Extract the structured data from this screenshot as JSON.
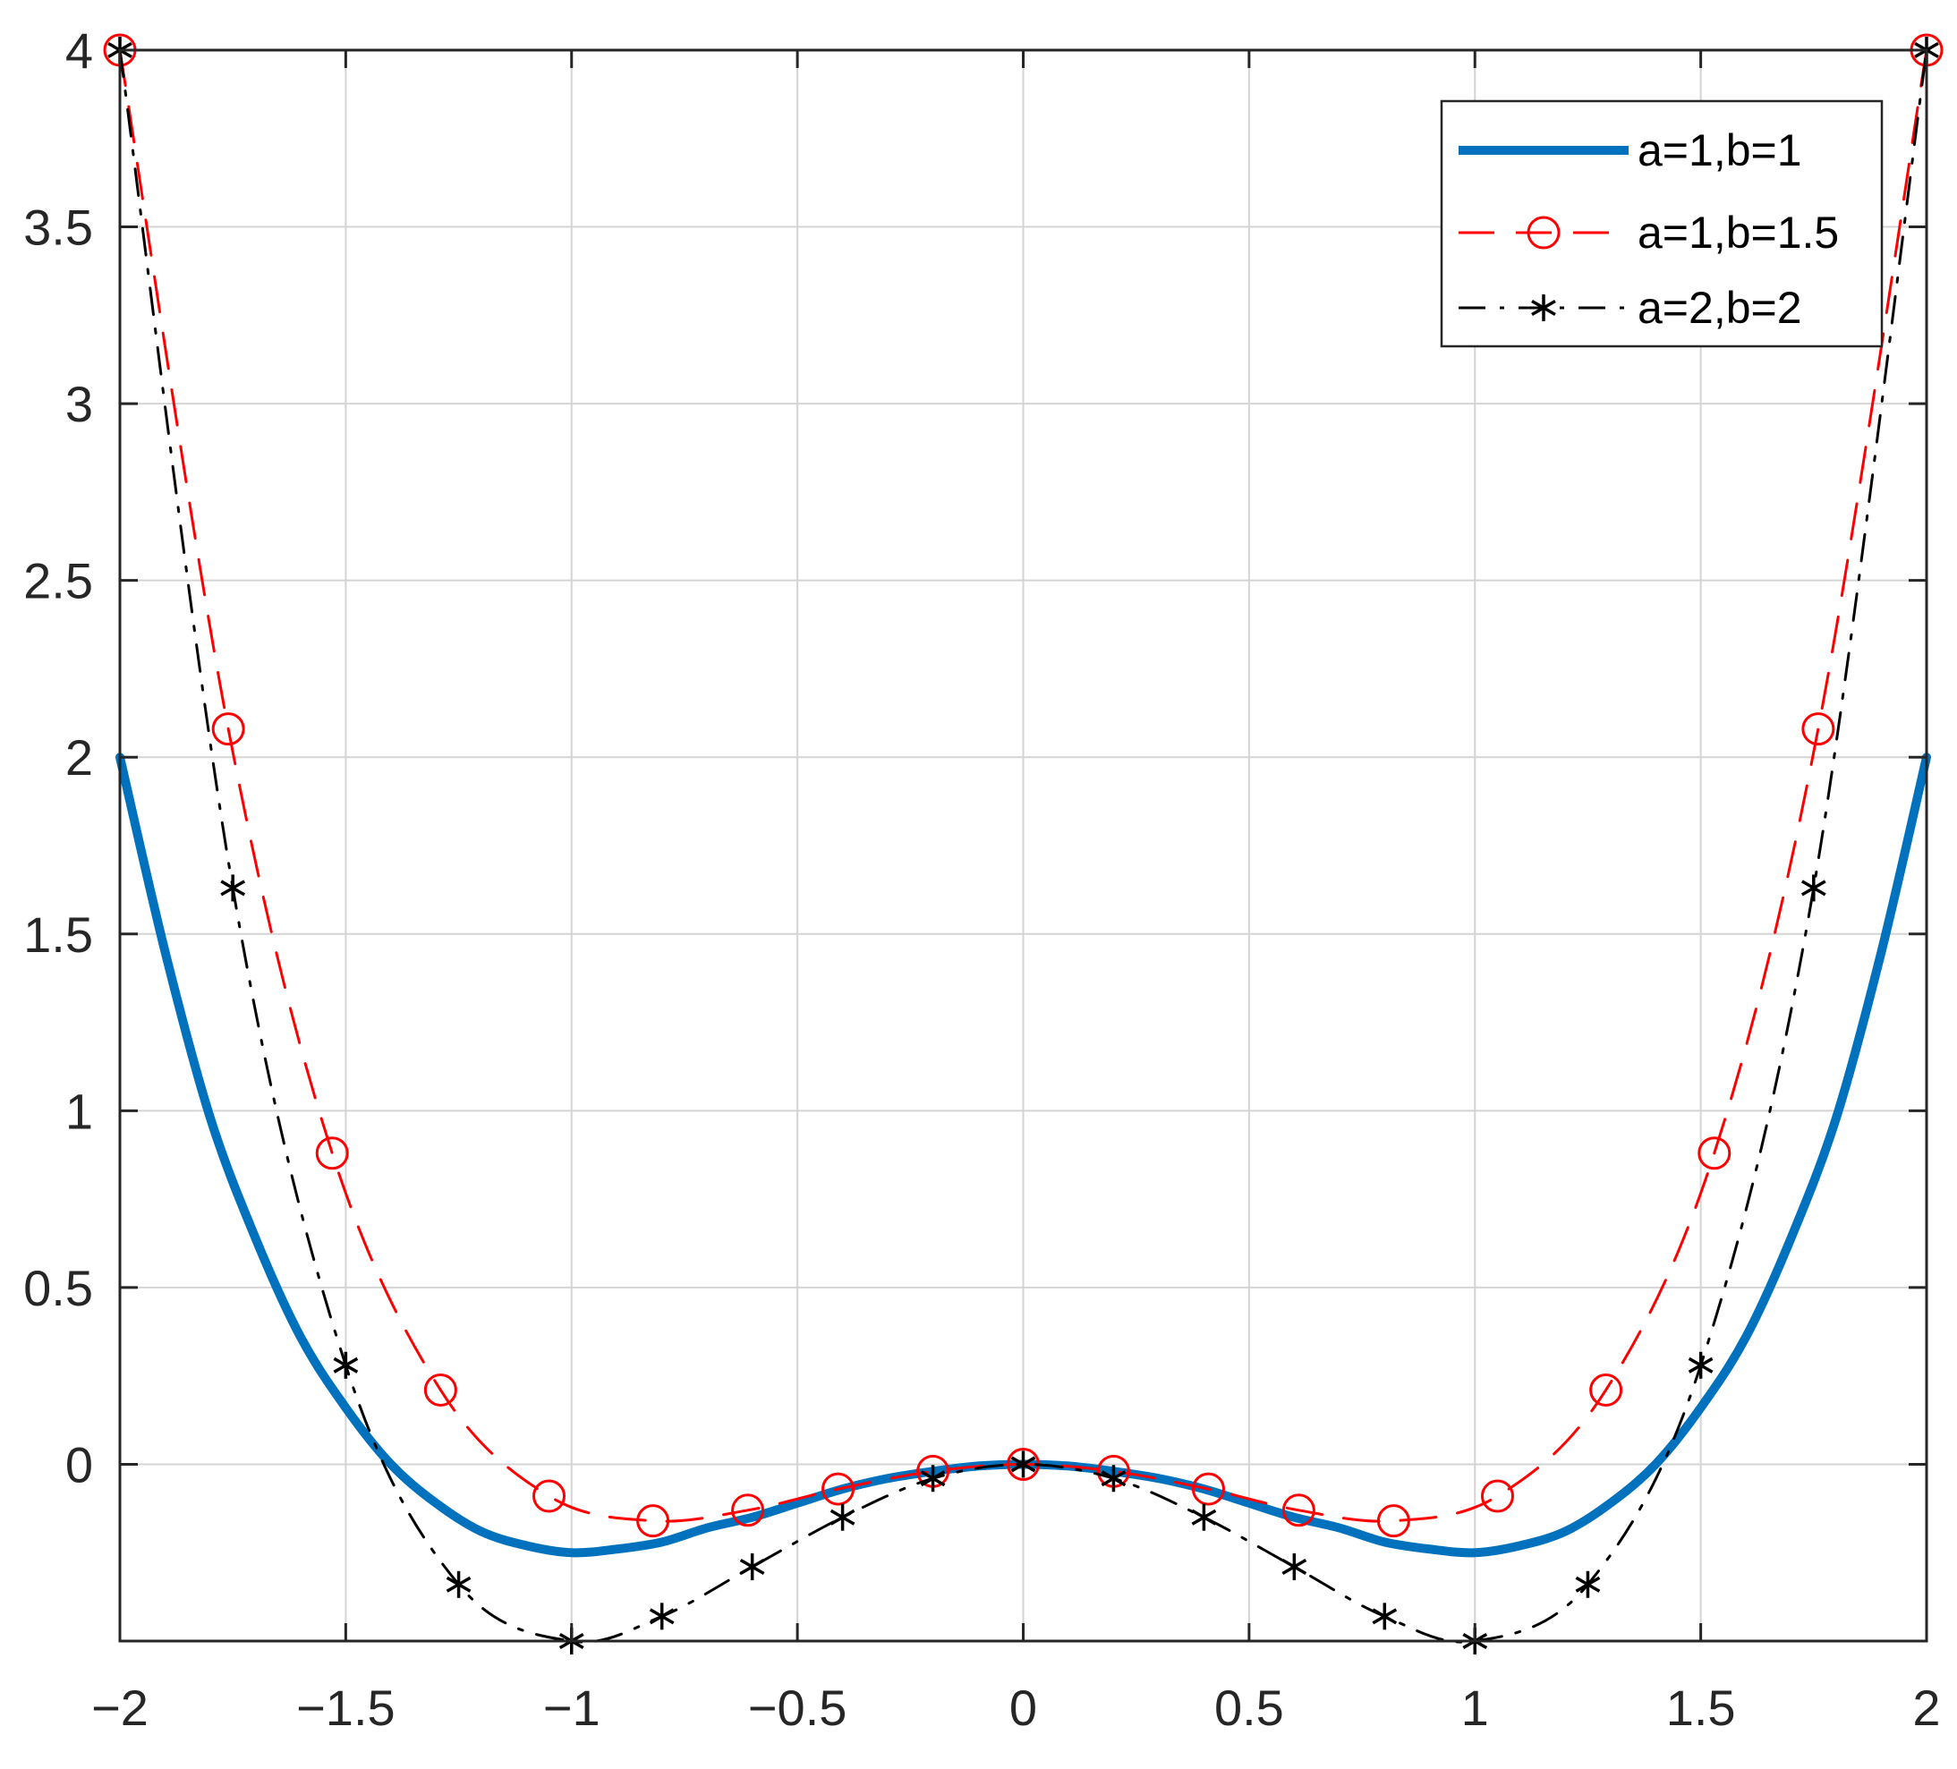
{
  "chart_data": {
    "type": "line",
    "title": "",
    "xlabel": "",
    "ylabel": "",
    "xlim": [
      -2,
      2
    ],
    "ylim": [
      -0.5,
      4
    ],
    "grid": true,
    "legend_position": "top-right",
    "x_ticks": [
      -2,
      -1.5,
      -1,
      -0.5,
      0,
      0.5,
      1,
      1.5,
      2
    ],
    "x_tick_labels": [
      "−2",
      "−1.5",
      "−1",
      "−0.5",
      "0",
      "0.5",
      "1",
      "1.5",
      "2"
    ],
    "y_ticks": [
      0,
      0.5,
      1,
      1.5,
      2,
      2.5,
      3,
      3.5,
      4
    ],
    "y_tick_labels": [
      "0",
      "0.5",
      "1",
      "1.5",
      "2",
      "2.5",
      "3",
      "3.5",
      "4"
    ],
    "series": [
      {
        "name": "a=1,b=1",
        "color": "#0072BD",
        "line_style": "solid",
        "marker": "none",
        "x": [
          -2,
          -1.9,
          -1.8,
          -1.7,
          -1.6,
          -1.5,
          -1.4,
          -1.3,
          -1.2,
          -1.1,
          -1,
          -0.9,
          -0.8,
          -0.7,
          -0.6,
          -0.5,
          -0.4,
          -0.3,
          -0.2,
          -0.1,
          0,
          0.1,
          0.2,
          0.3,
          0.4,
          0.5,
          0.6,
          0.7,
          0.8,
          0.9,
          1,
          1.1,
          1.2,
          1.3,
          1.4,
          1.5,
          1.6,
          1.7,
          1.8,
          1.9,
          2
        ],
        "y": [
          2,
          1.45,
          0.98,
          0.64,
          0.36,
          0.16,
          0.0,
          -0.11,
          -0.19,
          -0.23,
          -0.25,
          -0.24,
          -0.22,
          -0.18,
          -0.15,
          -0.11,
          -0.07,
          -0.04,
          -0.02,
          -0.005,
          0,
          -0.005,
          -0.02,
          -0.04,
          -0.07,
          -0.11,
          -0.15,
          -0.18,
          -0.22,
          -0.24,
          -0.25,
          -0.23,
          -0.19,
          -0.11,
          0.0,
          0.16,
          0.36,
          0.64,
          0.98,
          1.45,
          2
        ]
      },
      {
        "name": "a=1,b=1.5",
        "color": "#FF0000",
        "line_style": "dashed",
        "marker": "circle",
        "x": [
          -2,
          -1.76,
          -1.53,
          -1.29,
          -1.05,
          -0.82,
          -0.61,
          -0.41,
          -0.2,
          0,
          0.2,
          0.41,
          0.61,
          0.82,
          1.05,
          1.29,
          1.53,
          1.76,
          2
        ],
        "y": [
          4,
          2.08,
          0.88,
          0.21,
          -0.09,
          -0.16,
          -0.13,
          -0.07,
          -0.02,
          0,
          -0.02,
          -0.07,
          -0.13,
          -0.16,
          -0.09,
          0.21,
          0.88,
          2.08,
          4
        ]
      },
      {
        "name": "a=2,b=2",
        "color": "#000000",
        "line_style": "dash-dot",
        "marker": "asterisk",
        "x": [
          -2,
          -1.75,
          -1.5,
          -1.25,
          -1,
          -0.8,
          -0.6,
          -0.4,
          -0.2,
          0,
          0.2,
          0.4,
          0.6,
          0.8,
          1,
          1.25,
          1.5,
          1.75,
          2
        ],
        "y": [
          4,
          1.63,
          0.28,
          -0.34,
          -0.5,
          -0.43,
          -0.29,
          -0.15,
          -0.04,
          0,
          -0.04,
          -0.15,
          -0.29,
          -0.43,
          -0.5,
          -0.34,
          0.28,
          1.63,
          4
        ]
      }
    ]
  }
}
